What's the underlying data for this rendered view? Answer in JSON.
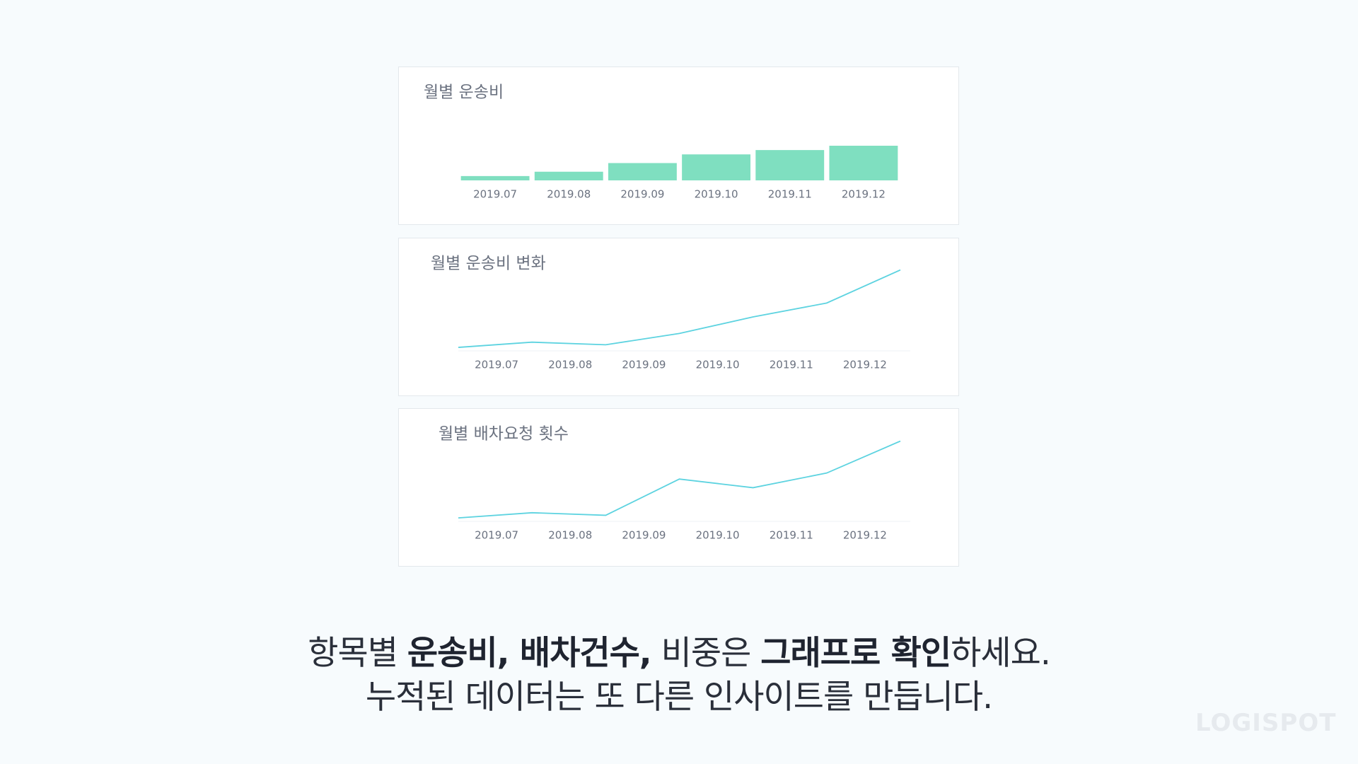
{
  "chart_data": [
    {
      "type": "bar",
      "title": "월별 운송비",
      "categories": [
        "2019.07",
        "2019.08",
        "2019.09",
        "2019.10",
        "2019.11",
        "2019.12"
      ],
      "values": [
        5,
        10,
        20,
        30,
        35,
        40
      ],
      "color": "#7fdfc0",
      "ylim": [
        0,
        80
      ]
    },
    {
      "type": "line",
      "title": "월별 운송비 변화",
      "categories": [
        "2019.07",
        "2019.08",
        "2019.09",
        "2019.10",
        "2019.11",
        "2019.12",
        null
      ],
      "values": [
        4,
        10,
        7,
        20,
        39,
        55,
        93
      ],
      "color": "#5dd3e0",
      "ylim": [
        0,
        100
      ]
    },
    {
      "type": "line",
      "title": "월별 배차요청 횟수",
      "categories": [
        "2019.07",
        "2019.08",
        "2019.09",
        "2019.10",
        "2019.11",
        "2019.12",
        null
      ],
      "values": [
        4,
        10,
        7,
        49,
        39,
        56,
        93
      ],
      "color": "#5dd3e0",
      "ylim": [
        0,
        100
      ]
    }
  ],
  "caption": {
    "line1": [
      {
        "text": "항목별 ",
        "bold": false
      },
      {
        "text": "운송비, 배차건수,",
        "bold": true
      },
      {
        "text": " 비중은 ",
        "bold": false
      },
      {
        "text": "그래프로 확인",
        "bold": true
      },
      {
        "text": "하세요.",
        "bold": false
      }
    ],
    "line2": "누적된 데이터는 또 다른 인사이트를 만듭니다."
  },
  "logo": "LOGISPOT"
}
